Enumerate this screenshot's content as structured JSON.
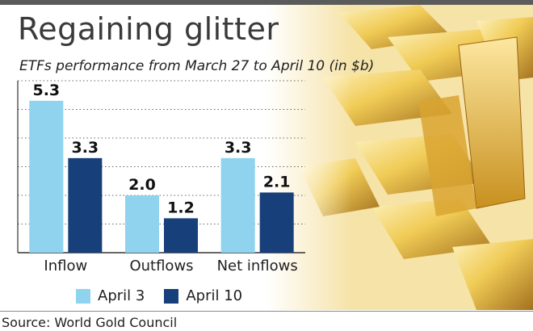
{
  "headline": "Regaining glitter",
  "chart_data": {
    "type": "bar",
    "title": "ETFs performance from March 27 to April 10 (in $b)",
    "categories": [
      "Inflow",
      "Outflows",
      "Net inflows"
    ],
    "series": [
      {
        "name": "April 3",
        "values": [
          5.3,
          2.0,
          3.3
        ],
        "labels": [
          "5.3",
          "2.0",
          "3.3"
        ],
        "color": "#8fd3ee"
      },
      {
        "name": "April 10",
        "values": [
          3.3,
          1.2,
          2.1
        ],
        "labels": [
          "3.3",
          "1.2",
          "2.1"
        ],
        "color": "#173f7a"
      }
    ],
    "ylim": [
      0,
      6
    ],
    "xlabel": "",
    "ylabel": "",
    "grid": true,
    "legend_position": "bottom-left"
  },
  "source": "Source: World Gold Council",
  "colors": {
    "gold_light": "#fff2b8",
    "gold": "#e9bb3a",
    "gold_dark": "#8a5a10",
    "grid": "#666666"
  }
}
